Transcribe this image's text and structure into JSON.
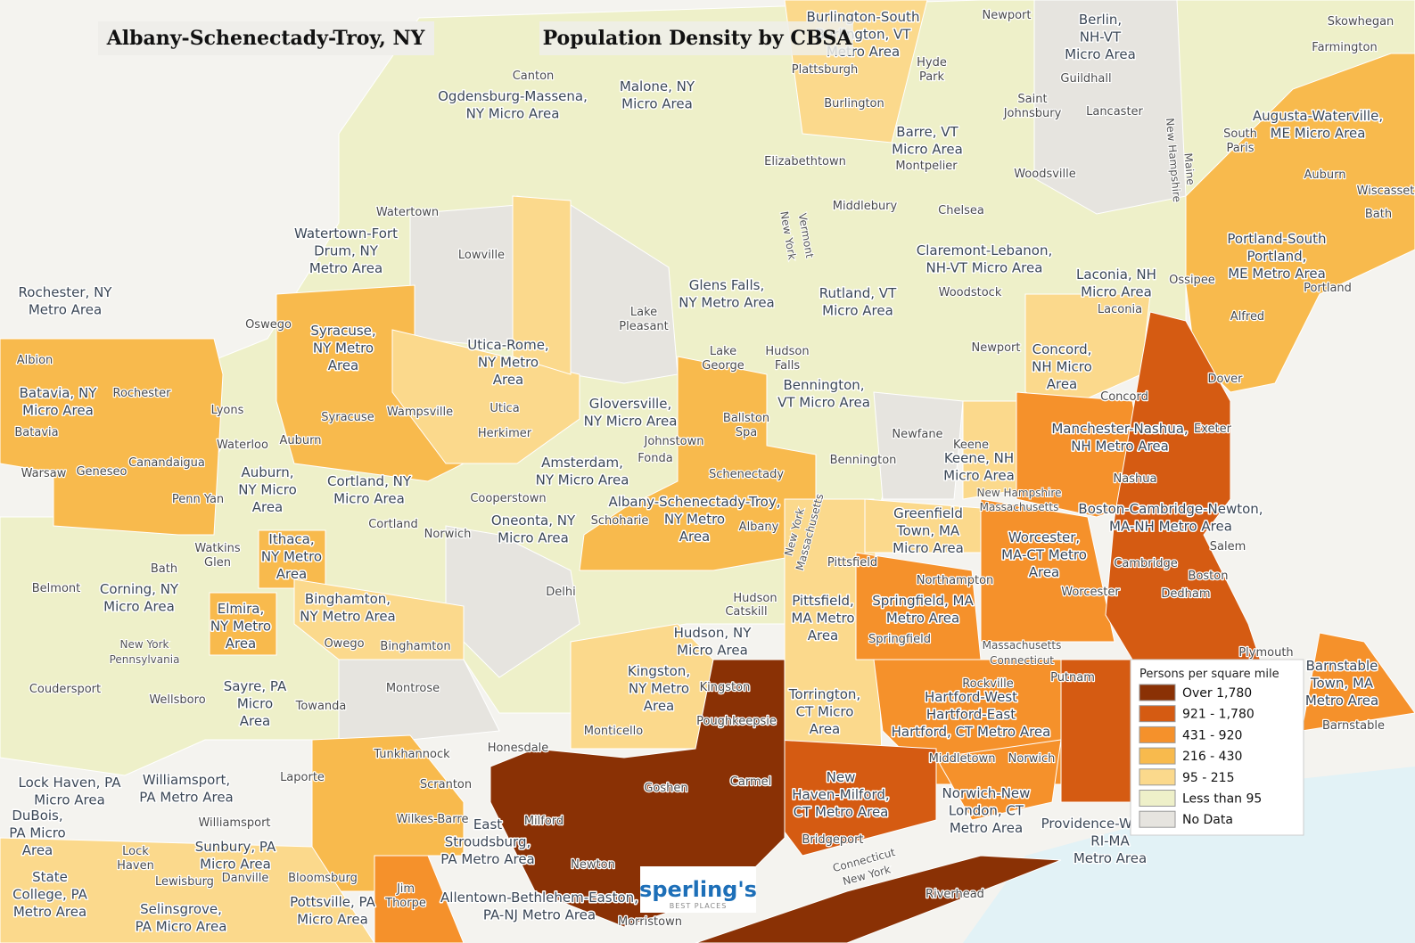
{
  "header": {
    "place_title": "Albany-Schenectady-Troy, NY",
    "map_title": "Population Density by CBSA"
  },
  "legend": {
    "title": "Persons per square mile",
    "items": [
      {
        "label": "Over 1,780",
        "color": "#8a3105"
      },
      {
        "label": "921 - 1,780",
        "color": "#d55b12"
      },
      {
        "label": "431 - 920",
        "color": "#f5912b"
      },
      {
        "label": "216 - 430",
        "color": "#f8ba4d"
      },
      {
        "label": "95 - 215",
        "color": "#fbd98c"
      },
      {
        "label": "Less than 95",
        "color": "#eef0c9"
      },
      {
        "label": "No Data",
        "color": "#e6e4df"
      }
    ]
  },
  "areas": [
    [
      "Rochester, NY",
      "Metro Area"
    ],
    [
      "Watertown-Fort",
      "Drum, NY",
      "Metro Area"
    ],
    [
      "Ogdensburg-Massena,",
      "NY Micro Area"
    ],
    [
      "Malone, NY",
      "Micro Area"
    ],
    [
      "Berlin,",
      "NH-VT",
      "Micro Area"
    ],
    [
      "Augusta-Waterville,",
      "ME Micro Area"
    ],
    [
      "Barre, VT",
      "Micro Area"
    ],
    [
      "Claremont-Lebanon,",
      "NH-VT Micro Area"
    ],
    [
      "Glens Falls,",
      "NY Metro Area"
    ],
    [
      "Rutland, VT",
      "Micro Area"
    ],
    [
      "Laconia, NH",
      "Micro Area"
    ],
    [
      "Portland-South",
      "Portland,",
      "ME Metro Area"
    ],
    [
      "Syracuse,",
      "NY Metro",
      "Area"
    ],
    [
      "Utica-Rome,",
      "NY Metro",
      "Area"
    ],
    [
      "Batavia, NY",
      "Micro Area"
    ],
    [
      "Gloversville,",
      "NY Micro Area"
    ],
    [
      "Bennington,",
      "VT Micro Area"
    ],
    [
      "Concord,",
      "NH Micro",
      "Area"
    ],
    [
      "Manchester-Nashua,",
      "NH Metro Area"
    ],
    [
      "Keene, NH",
      "Micro Area"
    ],
    [
      "Amsterdam,",
      "NY Micro Area"
    ],
    [
      "Auburn,",
      "NY Micro",
      "Area"
    ],
    [
      "Cortland, NY",
      "Micro Area"
    ],
    [
      "Albany-Schenectady-Troy,",
      "NY Metro",
      "Area"
    ],
    [
      "Boston-Cambridge-Newton,",
      "MA-NH Metro Area"
    ],
    [
      "Greenfield",
      "Town, MA",
      "Micro Area"
    ],
    [
      "Oneonta, NY",
      "Micro Area"
    ],
    [
      "Ithaca,",
      "NY Metro",
      "Area"
    ],
    [
      "Worcester,",
      "MA-CT Metro",
      "Area"
    ],
    [
      "Corning, NY",
      "Micro Area"
    ],
    [
      "Springfield, MA",
      "Metro Area"
    ],
    [
      "Pittsfield,",
      "MA Metro",
      "Area"
    ],
    [
      "Binghamton,",
      "NY Metro Area"
    ],
    [
      "Elmira,",
      "NY Metro",
      "Area"
    ],
    [
      "Hudson, NY",
      "Micro Area"
    ],
    [
      "Barnstable",
      "Town, MA",
      "Metro Area"
    ],
    [
      "Kingston,",
      "NY Metro",
      "Area"
    ],
    [
      "Sayre, PA",
      "Micro",
      "Area"
    ],
    [
      "Torrington,",
      "CT Micro",
      "Area"
    ],
    [
      "Hartford-West",
      "Hartford-East",
      "Hartford, CT Metro Area"
    ],
    [
      "New",
      "Haven-Milford,",
      "CT Metro Area"
    ],
    [
      "Norwich-New",
      "London, CT",
      "Metro Area"
    ],
    [
      "Providence-Warwick,",
      "RI-MA",
      "Metro Area"
    ],
    [
      "Lock Haven, PA",
      "Micro Area"
    ],
    [
      "Williamsport,",
      "PA Metro Area"
    ],
    [
      "DuBois,",
      "PA Micro",
      "Area"
    ],
    [
      "Sunbury, PA",
      "Micro Area"
    ],
    [
      "East",
      "Stroudsburg,",
      "PA Metro Area"
    ],
    [
      "State",
      "College, PA",
      "Metro Area"
    ],
    [
      "Selinsgrove,",
      "PA Micro Area"
    ],
    [
      "Pottsville, PA",
      "Micro Area"
    ],
    [
      "Allentown-Bethlehem-Easton,",
      "PA-NJ Metro Area"
    ],
    [
      "Burlington-South",
      "Burlington, VT",
      "Metro Area"
    ]
  ],
  "cities": [
    "Canton",
    "Watertown",
    "Lowville",
    "Oswego",
    "Albion",
    "Rochester",
    "Lyons",
    "Batavia",
    "Syracuse",
    "Wampsville",
    "Utica",
    "Herkimer",
    "Waterloo",
    "Auburn",
    "Canandaigua",
    "Geneseo",
    "Warsaw",
    "Penn Yan",
    "Cortland",
    "Cooperstown",
    "Johnstown",
    "Fonda",
    "Schenectady",
    [
      "Ballston",
      "Spa"
    ],
    "Schoharie",
    "Albany",
    "Norwich",
    [
      "Watkins",
      "Glen"
    ],
    "Bath",
    "Belmont",
    "Delhi",
    "Hudson",
    "Catskill",
    "Pittsfield",
    "Northampton",
    "Springfield",
    "Worcester",
    "Cambridge",
    "Boston",
    "Dedham",
    "Salem",
    "Owego",
    "Binghamton",
    "Montrose",
    "Towanda",
    "Wellsboro",
    "Coudersport",
    "Kingston",
    "Poughkeepsie",
    "Monticello",
    "Honesdale",
    "Tunkhannock",
    "Scranton",
    "Laporte",
    "Wilkes-Barre",
    "Williamsport",
    [
      "Lock",
      "Haven"
    ],
    "Lewisburg",
    "Danville",
    "Bloomsburg",
    [
      "Jim",
      "Thorpe"
    ],
    "Morristown",
    "Newton",
    "Milford",
    "Goshen",
    "Carmel",
    "Bridgeport",
    "Middletown",
    "Norwich",
    "Rockville",
    "Putnam",
    "Riverhead",
    [
      "Hudson",
      "Falls"
    ],
    [
      "Lake",
      "George"
    ],
    "Newfane",
    "Bennington",
    "Keene",
    "Nashua",
    "Concord",
    "Dover",
    "Exeter",
    "Alfred",
    "Portland",
    "Ossipee",
    "Laconia",
    "Newport",
    "Woodstock",
    "Chelsea",
    "Woodsville",
    "Middlebury",
    "Elizabethtown",
    "Montpelier",
    "Burlington",
    "Plattsburgh",
    [
      "Hyde",
      "Park"
    ],
    "Newport",
    "Guildhall",
    [
      "Saint",
      "Johnsbury"
    ],
    "Lancaster",
    [
      "South",
      "Paris"
    ],
    "Auburn",
    "Wiscasset",
    "Bath",
    "Farmington",
    "Skowhegan",
    "Barnstable",
    "Plymouth",
    [
      "Lake",
      "Pleasant"
    ]
  ],
  "states": [
    "New York",
    "Pennsylvania",
    "New York",
    "Vermont",
    "New Hampshire",
    "Maine",
    "New York",
    "Massachusetts",
    "Massachusetts",
    "Connecticut",
    "New Hampshire",
    "Massachusetts",
    "Connecticut",
    "New York"
  ],
  "logo": {
    "name": "sperling's",
    "tagline": "BEST PLACES"
  }
}
